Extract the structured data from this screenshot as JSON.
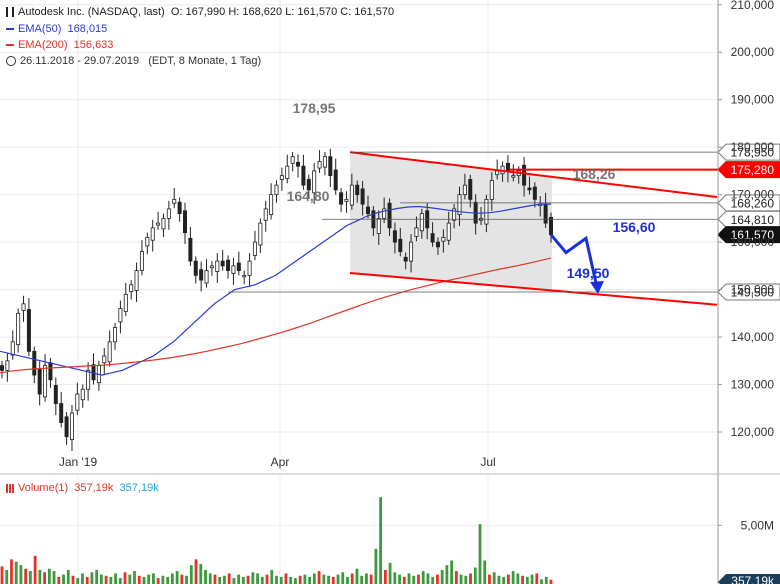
{
  "legend": {
    "instrument": "Autodesk Inc. (NASDAQ, last)",
    "ohlc": "O: 167,990  H: 168,620  L: 161,570  C: 161,570",
    "ema50_label": "EMA(50)",
    "ema50_value": "168,015",
    "ema200_label": "EMA(200)",
    "ema200_value": "156,633",
    "date_range": "26.11.2018 - 29.07.2019",
    "range_note": "(EDT, 8 Monate, 1 Tag)",
    "volume_label": "Volume(1)",
    "volume_value_red": "357,19k",
    "volume_value_blue": "357,19k"
  },
  "colors": {
    "ema50": "#2a3bd6",
    "ema200": "#e0342a",
    "trendline": "#ff0000",
    "projection": "#1a2fd8",
    "volume_up": "#3b9a3b",
    "volume_down": "#e0342a",
    "channel_fill": "#e4e4e4"
  },
  "chart_data": [
    {
      "type": "candlestick",
      "title": "",
      "y_ticks": [
        "210,000",
        "200,000",
        "190,000",
        "180,000",
        "170,000",
        "160,000",
        "150,000",
        "140,000",
        "130,000",
        "120,000"
      ],
      "ylim": [
        112,
        211
      ],
      "x_ticks": [
        "Jan '19",
        "Apr",
        "Jul"
      ],
      "price_tags": [
        {
          "label": "178,950",
          "value": 178.95,
          "style": "plain"
        },
        {
          "label": "175,280",
          "value": 175.28,
          "style": "red"
        },
        {
          "label": "168,260",
          "value": 168.26,
          "style": "plain"
        },
        {
          "label": "164,810",
          "value": 164.81,
          "style": "plain"
        },
        {
          "label": "161,570",
          "value": 161.57,
          "style": "black"
        },
        {
          "label": "149,500",
          "value": 149.5,
          "style": "plain"
        }
      ],
      "annotations": [
        {
          "label": "178,95",
          "value": 178.95,
          "color": "gray"
        },
        {
          "label": "164,80",
          "value": 164.8,
          "color": "gray"
        },
        {
          "label": "168,26",
          "value": 168.26,
          "color": "gray"
        },
        {
          "label": "156,60",
          "value": 156.6,
          "color": "blue"
        },
        {
          "label": "149,50",
          "value": 149.5,
          "color": "blue"
        }
      ],
      "close_series": [
        133,
        135,
        139,
        145,
        147,
        137,
        132,
        128,
        134,
        131,
        126,
        122,
        119,
        124,
        128,
        129,
        133,
        131,
        134,
        136,
        139,
        142,
        146,
        149,
        151,
        154,
        158,
        161,
        163,
        164,
        165,
        167,
        169,
        166,
        162,
        156,
        153,
        152,
        154,
        155,
        156,
        155,
        154,
        155,
        154,
        153,
        156,
        160,
        164,
        167,
        170,
        172,
        174,
        176,
        178,
        176,
        172,
        171,
        175,
        177,
        178,
        174,
        171,
        168,
        169,
        172,
        170,
        168,
        166,
        163,
        165,
        167,
        163,
        160,
        158,
        156,
        160,
        163,
        166,
        163,
        160,
        159,
        161,
        164,
        167,
        170,
        172,
        169,
        164,
        165,
        169,
        173,
        175,
        176,
        175,
        174,
        175,
        172,
        171,
        169,
        168,
        164,
        161.57
      ],
      "ema50_series": [
        137,
        136.5,
        136,
        135.5,
        135,
        134.5,
        134,
        133.5,
        133,
        132.5,
        132,
        132.5,
        133,
        134,
        135,
        136,
        137.5,
        139,
        141,
        143,
        145,
        147,
        148.5,
        150,
        150.5,
        151,
        152,
        153,
        154.5,
        156,
        157.5,
        159,
        160.5,
        162,
        163.5,
        164.5,
        165.5,
        166.2,
        166.7,
        167.1,
        167.4,
        167.5,
        167.3,
        167,
        166.7,
        166.4,
        166.2,
        166.1,
        166.2,
        166.5,
        166.9,
        167.3,
        167.7,
        168,
        168.015
      ],
      "ema200_series": [
        132.5,
        133,
        133.3,
        133.5,
        133.7,
        133.9,
        134.1,
        134.4,
        134.8,
        135.2,
        135.7,
        136.3,
        137,
        137.8,
        138.6,
        139.6,
        140.6,
        141.7,
        142.9,
        144.2,
        145.5,
        146.8,
        148,
        149.1,
        150.1,
        151,
        151.9,
        152.7,
        153.5,
        154.3,
        155,
        155.8,
        156.633
      ],
      "channel_upper": [
        [
          350,
          178.95
        ],
        [
          717,
          169.5
        ]
      ],
      "channel_lower": [
        [
          350,
          153.5
        ],
        [
          717,
          146.8
        ]
      ],
      "resistance_level": 175.28,
      "projection_path": [
        161.57,
        157.8,
        160.8,
        149.5
      ]
    },
    {
      "type": "bar",
      "title": "",
      "y_ticks": [
        "5,00M"
      ],
      "ylim": [
        0,
        9.2
      ],
      "last_value_label": "357,19k",
      "values": [
        1.5,
        1.2,
        2.1,
        1.9,
        1.6,
        1.3,
        1.1,
        2.4,
        1.2,
        1.0,
        1.3,
        1.1,
        0.6,
        0.8,
        1.2,
        0.7,
        0.5,
        0.9,
        0.6,
        1.0,
        1.2,
        0.8,
        0.7,
        0.6,
        0.9,
        0.5,
        1.0,
        0.8,
        1.1,
        0.7,
        0.6,
        0.8,
        0.9,
        0.5,
        0.7,
        0.6,
        0.9,
        1.1,
        0.8,
        0.7,
        1.6,
        2.1,
        1.7,
        1.2,
        0.9,
        0.8,
        0.6,
        0.7,
        0.9,
        0.5,
        0.8,
        0.6,
        0.7,
        1.0,
        0.9,
        0.6,
        0.8,
        1.2,
        0.7,
        0.6,
        0.9,
        0.6,
        0.5,
        0.7,
        0.8,
        0.6,
        0.9,
        1.1,
        0.8,
        0.7,
        0.6,
        0.8,
        1.0,
        0.6,
        0.9,
        1.3,
        0.7,
        0.9,
        0.8,
        3.0,
        7.4,
        1.2,
        1.8,
        1.0,
        0.8,
        0.6,
        0.9,
        0.7,
        0.8,
        1.1,
        0.9,
        0.6,
        0.8,
        1.2,
        1.6,
        2.0,
        1.1,
        0.8,
        0.7,
        0.9,
        1.4,
        5.1,
        2.0,
        0.8,
        1.0,
        0.7,
        0.6,
        0.8,
        1.1,
        0.9,
        0.7,
        0.6,
        0.8,
        0.9,
        0.4,
        0.6,
        0.36
      ],
      "down": [
        0,
        2,
        5,
        7,
        9,
        12,
        15,
        18,
        22,
        26,
        29,
        33,
        38,
        41,
        45,
        48,
        52,
        56,
        60,
        63,
        67,
        70,
        74,
        78,
        81,
        85,
        88,
        92,
        96,
        99,
        103,
        107,
        110,
        113,
        116
      ]
    }
  ]
}
